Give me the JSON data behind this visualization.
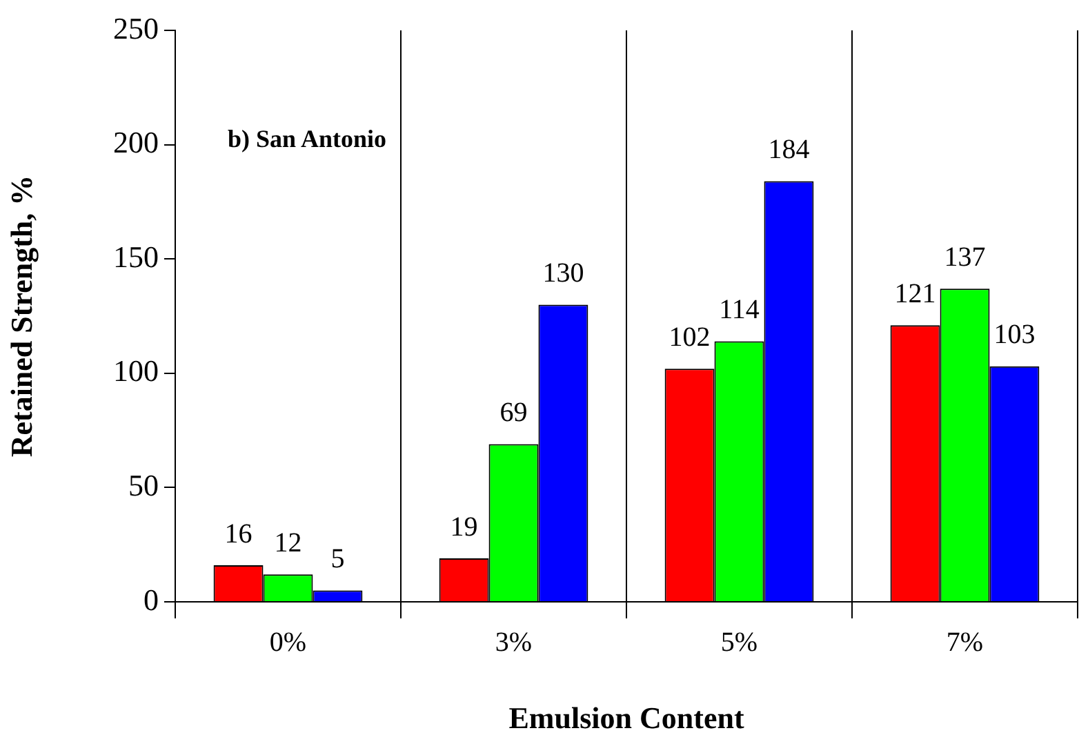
{
  "chart_data": {
    "type": "bar",
    "title": "b) San Antonio",
    "xlabel": "Emulsion Content",
    "ylabel": "Retained Strength, %",
    "categories": [
      "0%",
      "3%",
      "5%",
      "7%"
    ],
    "series": [
      {
        "color": "#ff0000",
        "values": [
          16,
          19,
          102,
          121
        ]
      },
      {
        "color": "#00ff00",
        "values": [
          12,
          69,
          114,
          137
        ]
      },
      {
        "color": "#0000ff",
        "values": [
          5,
          130,
          184,
          103
        ]
      }
    ],
    "ylim": [
      0,
      250
    ],
    "yticks": [
      0,
      50,
      100,
      150,
      200,
      250
    ],
    "grid": "x",
    "legend": false,
    "data_labels": true
  }
}
